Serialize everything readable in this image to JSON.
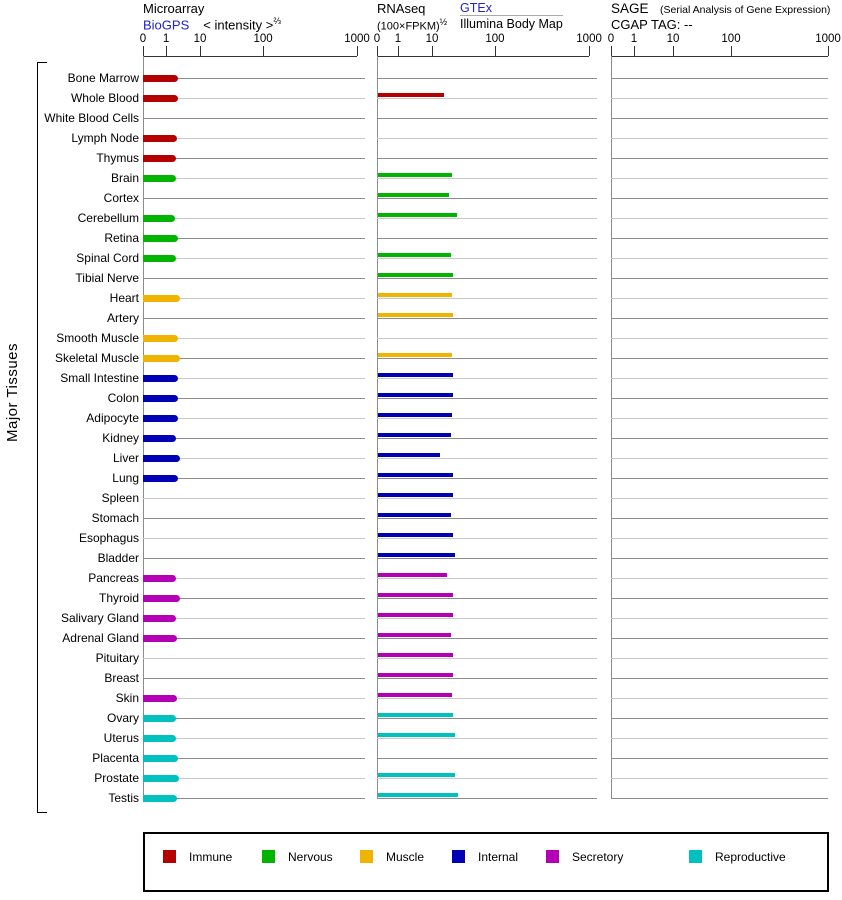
{
  "header": {
    "microarray": {
      "title": "Microarray",
      "link": "BioGPS",
      "intensity": "< intensity >",
      "intensity_sup": "⅔"
    },
    "rnaseq": {
      "title": "RNAseq",
      "unit": "(100×FPKM)",
      "unit_sup": "½",
      "link": "GTEx",
      "source": "Illumina Body Map"
    },
    "sage": {
      "title": "SAGE",
      "subtitle": "(Serial Analysis of Gene Expression)",
      "cgap": "CGAP TAG: --"
    }
  },
  "side_label": "Major Tissues",
  "axis_tick_labels": [
    "0",
    "1",
    "10",
    "100",
    "1000"
  ],
  "colors": {
    "immune": "#b40000",
    "nervous": "#00b400",
    "muscle": "#f0b400",
    "internal": "#0000b4",
    "secretory": "#b400b4",
    "reproductive": "#00c0c0",
    "link": "#2222cc"
  },
  "legend": {
    "items": [
      {
        "label": "Immune",
        "category": "immune"
      },
      {
        "label": "Nervous",
        "category": "nervous"
      },
      {
        "label": "Muscle",
        "category": "muscle"
      },
      {
        "label": "Internal",
        "category": "internal"
      },
      {
        "label": "Secretory",
        "category": "secretory"
      },
      {
        "label": "Reproductive",
        "category": "reproductive"
      }
    ]
  },
  "chart_data": {
    "type": "bar",
    "orientation": "horizontal",
    "x_scale": "log-like with zero (ticks 0, 1, 10, 100, 1000)",
    "xlim": [
      0,
      1000
    ],
    "panels": [
      "Microarray BioGPS < intensity >^2/3",
      "RNAseq (100×FPKM)^1/2 GTEx / Illumina Body Map",
      "SAGE CGAP TAG: -- (no data)"
    ],
    "tissues": [
      {
        "name": "Bone Marrow",
        "category": "immune",
        "microarray": 2.2,
        "rnaseq": null,
        "sage": null
      },
      {
        "name": "Whole Blood",
        "category": "immune",
        "microarray": 2.3,
        "rnaseq": 15,
        "sage": null
      },
      {
        "name": "White Blood Cells",
        "category": "immune",
        "microarray": null,
        "rnaseq": null,
        "sage": null
      },
      {
        "name": "Lymph Node",
        "category": "immune",
        "microarray": 2.1,
        "rnaseq": null,
        "sage": null
      },
      {
        "name": "Thymus",
        "category": "immune",
        "microarray": 2.0,
        "rnaseq": null,
        "sage": null
      },
      {
        "name": "Brain",
        "category": "nervous",
        "microarray": 1.9,
        "rnaseq": 20,
        "sage": null
      },
      {
        "name": "Cortex",
        "category": "nervous",
        "microarray": null,
        "rnaseq": 18,
        "sage": null
      },
      {
        "name": "Cerebellum",
        "category": "nervous",
        "microarray": 1.8,
        "rnaseq": 24,
        "sage": null
      },
      {
        "name": "Retina",
        "category": "nervous",
        "microarray": 2.3,
        "rnaseq": null,
        "sage": null
      },
      {
        "name": "Spinal Cord",
        "category": "nervous",
        "microarray": 2.0,
        "rnaseq": 19,
        "sage": null
      },
      {
        "name": "Tibial Nerve",
        "category": "nervous",
        "microarray": null,
        "rnaseq": 21,
        "sage": null
      },
      {
        "name": "Heart",
        "category": "muscle",
        "microarray": 2.6,
        "rnaseq": 20,
        "sage": null
      },
      {
        "name": "Artery",
        "category": "muscle",
        "microarray": null,
        "rnaseq": 21,
        "sage": null
      },
      {
        "name": "Smooth Muscle",
        "category": "muscle",
        "microarray": 2.3,
        "rnaseq": null,
        "sage": null
      },
      {
        "name": "Skeletal Muscle",
        "category": "muscle",
        "microarray": 2.6,
        "rnaseq": 20,
        "sage": null
      },
      {
        "name": "Small Intestine",
        "category": "internal",
        "microarray": 2.2,
        "rnaseq": 21,
        "sage": null
      },
      {
        "name": "Colon",
        "category": "internal",
        "microarray": 2.2,
        "rnaseq": 21,
        "sage": null
      },
      {
        "name": "Adipocyte",
        "category": "internal",
        "microarray": 2.2,
        "rnaseq": 20,
        "sage": null
      },
      {
        "name": "Kidney",
        "category": "internal",
        "microarray": 2.0,
        "rnaseq": 19,
        "sage": null
      },
      {
        "name": "Liver",
        "category": "internal",
        "microarray": 2.6,
        "rnaseq": 13,
        "sage": null
      },
      {
        "name": "Lung",
        "category": "internal",
        "microarray": 2.3,
        "rnaseq": 21,
        "sage": null
      },
      {
        "name": "Spleen",
        "category": "internal",
        "microarray": null,
        "rnaseq": 21,
        "sage": null
      },
      {
        "name": "Stomach",
        "category": "internal",
        "microarray": null,
        "rnaseq": 19,
        "sage": null
      },
      {
        "name": "Esophagus",
        "category": "internal",
        "microarray": null,
        "rnaseq": 21,
        "sage": null
      },
      {
        "name": "Bladder",
        "category": "internal",
        "microarray": null,
        "rnaseq": 22,
        "sage": null
      },
      {
        "name": "Pancreas",
        "category": "secretory",
        "microarray": 2.0,
        "rnaseq": 17,
        "sage": null
      },
      {
        "name": "Thyroid",
        "category": "secretory",
        "microarray": 2.6,
        "rnaseq": 21,
        "sage": null
      },
      {
        "name": "Salivary Gland",
        "category": "secretory",
        "microarray": 2.0,
        "rnaseq": 21,
        "sage": null
      },
      {
        "name": "Adrenal Gland",
        "category": "secretory",
        "microarray": 2.1,
        "rnaseq": 19,
        "sage": null
      },
      {
        "name": "Pituitary",
        "category": "secretory",
        "microarray": null,
        "rnaseq": 21,
        "sage": null
      },
      {
        "name": "Breast",
        "category": "secretory",
        "microarray": null,
        "rnaseq": 21,
        "sage": null
      },
      {
        "name": "Skin",
        "category": "secretory",
        "microarray": 2.1,
        "rnaseq": 20,
        "sage": null
      },
      {
        "name": "Ovary",
        "category": "reproductive",
        "microarray": 1.9,
        "rnaseq": 21,
        "sage": null
      },
      {
        "name": "Uterus",
        "category": "reproductive",
        "microarray": 2.0,
        "rnaseq": 22,
        "sage": null
      },
      {
        "name": "Placenta",
        "category": "reproductive",
        "microarray": 2.2,
        "rnaseq": null,
        "sage": null
      },
      {
        "name": "Prostate",
        "category": "reproductive",
        "microarray": 2.4,
        "rnaseq": 22,
        "sage": null
      },
      {
        "name": "Testis",
        "category": "reproductive",
        "microarray": 2.1,
        "rnaseq": 25,
        "sage": null
      }
    ]
  }
}
